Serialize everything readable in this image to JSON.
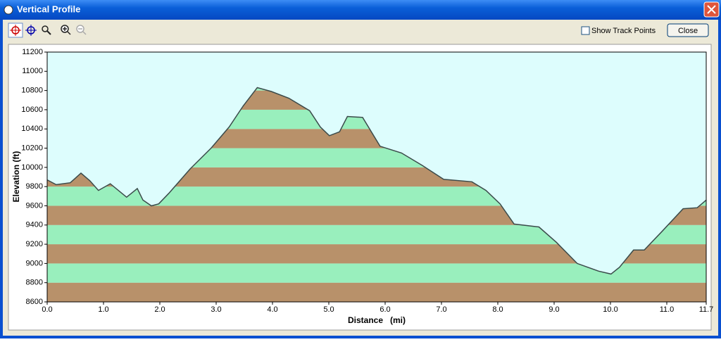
{
  "window": {
    "title": "Vertical Profile",
    "checkbox": "Show Track Points",
    "button": "Close"
  },
  "chart_data": {
    "type": "area",
    "xlabel": "Distance   (mi)",
    "ylabel": "Elevation (ft)",
    "xlim": [
      0,
      11.7
    ],
    "ylim": [
      8600,
      11200
    ],
    "xticks": [
      {
        "value": 0,
        "label": "0.0"
      },
      {
        "value": 1,
        "label": "1.0"
      },
      {
        "value": 2,
        "label": "2.0"
      },
      {
        "value": 3,
        "label": "3.0"
      },
      {
        "value": 4,
        "label": "4.0"
      },
      {
        "value": 5,
        "label": "5.0"
      },
      {
        "value": 6,
        "label": "6.0"
      },
      {
        "value": 7,
        "label": "7.0"
      },
      {
        "value": 8,
        "label": "8.0"
      },
      {
        "value": 9,
        "label": "9.0"
      },
      {
        "value": 10,
        "label": "10.0"
      },
      {
        "value": 11,
        "label": "11.0"
      },
      11.7
    ],
    "yticks": [
      8600,
      8800,
      9000,
      9200,
      9400,
      9600,
      9800,
      10000,
      10200,
      10400,
      10600,
      10800,
      11000,
      11200
    ],
    "band_colors": [
      "#b8916a",
      "#99efbd"
    ],
    "background": "#ddfdfd",
    "line_color": "#3a4a4a",
    "x": [
      0,
      0.16,
      0.41,
      0.6,
      0.76,
      0.91,
      1.12,
      1.41,
      1.6,
      1.7,
      1.85,
      1.98,
      2.16,
      2.54,
      2.91,
      3.23,
      3.48,
      3.73,
      3.98,
      4.29,
      4.66,
      4.85,
      5.01,
      5.19,
      5.33,
      5.6,
      5.91,
      6.29,
      6.66,
      7.04,
      7.54,
      7.79,
      8.04,
      8.29,
      8.73,
      9.04,
      9.41,
      9.79,
      10.01,
      10.16,
      10.41,
      10.6,
      10.91,
      11.29,
      11.54,
      11.7
    ],
    "values": [
      9870,
      9820,
      9840,
      9940,
      9860,
      9760,
      9830,
      9690,
      9780,
      9660,
      9600,
      9620,
      9730,
      9985,
      10200,
      10420,
      10640,
      10830,
      10790,
      10720,
      10590,
      10420,
      10330,
      10370,
      10530,
      10520,
      10220,
      10150,
      10020,
      9875,
      9850,
      9760,
      9620,
      9410,
      9380,
      9220,
      9000,
      8920,
      8890,
      8960,
      9140,
      9140,
      9330,
      9570,
      9580,
      9660
    ]
  }
}
